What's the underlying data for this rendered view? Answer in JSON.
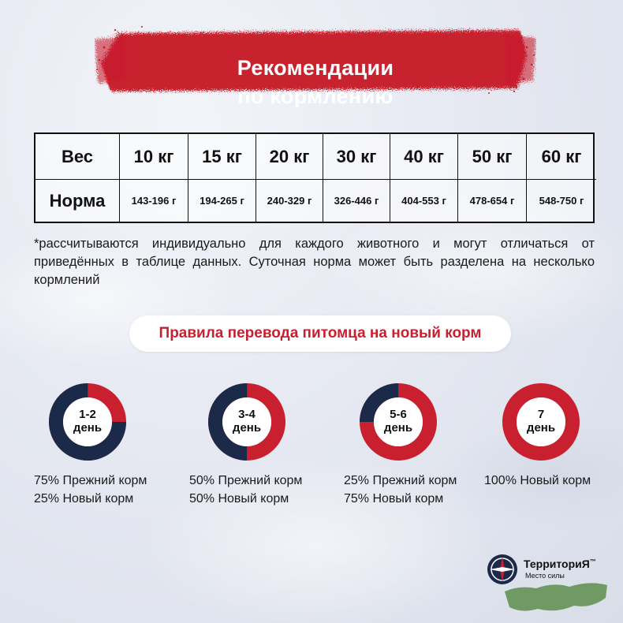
{
  "title": {
    "line1": "Рекомендации",
    "line2": "по кормлению"
  },
  "table": {
    "header_label": "Вес",
    "weights": [
      "10 кг",
      "15 кг",
      "20 кг",
      "30 кг",
      "40 кг",
      "50 кг",
      "60 кг"
    ],
    "row_label": "Норма",
    "norms": [
      "143-196 г",
      "194-265 г",
      "240-329 г",
      "326-446 г",
      "404-553 г",
      "478-654 г",
      "548-750 г"
    ]
  },
  "note": "*рассчитываются индивидуально для каждого животного и могут отличаться от приведённых в таблице данных. Суточная норма может быть разделена на несколько кормлений",
  "rules_title": "Правила перевода питомца на новый корм",
  "colors": {
    "accent_red": "#c8202f",
    "navy": "#1c2a4a"
  },
  "steps": [
    {
      "day_line1": "1-2",
      "day_line2": "день",
      "old_fraction": 0.75,
      "caption1": "75% Прежний корм",
      "caption2": "25% Новый корм"
    },
    {
      "day_line1": "3-4",
      "day_line2": "день",
      "old_fraction": 0.5,
      "caption1": "50% Прежний корм",
      "caption2": "50% Новый корм"
    },
    {
      "day_line1": "5-6",
      "day_line2": "день",
      "old_fraction": 0.25,
      "caption1": "25% Прежний корм",
      "caption2": "75% Новый корм"
    },
    {
      "day_line1": "7",
      "day_line2": "день",
      "old_fraction": 0,
      "caption1": "100% Новый корм",
      "caption2": ""
    }
  ],
  "logo": {
    "name": "ТерриториЯ",
    "tm": "™",
    "slogan": "Место силы"
  }
}
